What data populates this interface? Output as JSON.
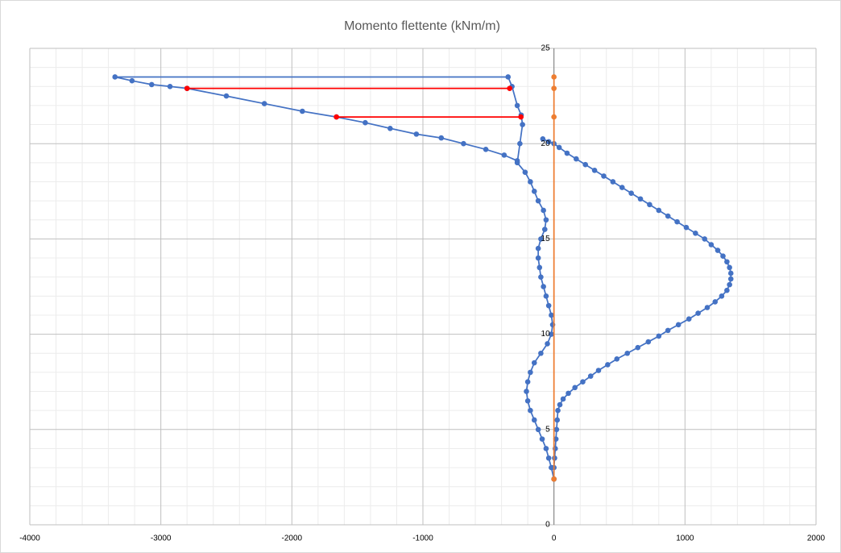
{
  "chart_data": {
    "type": "scatter",
    "title": "Momento flettente (kNm/m)",
    "xlim": [
      -4000,
      2000
    ],
    "xticks": [
      -4000,
      -3000,
      -2000,
      -1000,
      0,
      1000,
      2000
    ],
    "ylim": [
      0,
      25
    ],
    "yticks": [
      0,
      5,
      10,
      15,
      20,
      25
    ],
    "grid": true,
    "minor_divisions": 5,
    "series": [
      {
        "color": "#4472c4",
        "x": [
          0,
          -20,
          -40,
          -60,
          -90,
          -120,
          -150,
          -180,
          -200,
          -210,
          -200,
          -180,
          -150,
          -100,
          -50,
          -20,
          -10,
          -20,
          -40,
          -60,
          -80,
          -100,
          -110,
          -120,
          -120,
          -100,
          -70,
          -60,
          -80,
          -120,
          -150,
          -180,
          -220,
          -280,
          -260,
          -240,
          -250,
          -280,
          -320,
          -350,
          -3350,
          -3220,
          -3070,
          -2930,
          -2800,
          -2500,
          -2210,
          -1920,
          -1660,
          -1440,
          -1250,
          -1050,
          -860,
          -690,
          -520,
          -380,
          -280
        ],
        "values": [
          2.4,
          3,
          3.5,
          4,
          4.5,
          5,
          5.5,
          6,
          6.5,
          7,
          7.5,
          8,
          8.5,
          9,
          9.5,
          10,
          10.5,
          11,
          11.5,
          12,
          12.5,
          13,
          13.5,
          14,
          14.5,
          15,
          15.5,
          16,
          16.5,
          17,
          17.5,
          18,
          18.5,
          19,
          20,
          21,
          21.5,
          22,
          23,
          23.5,
          23.5,
          23.3,
          23.1,
          23,
          22.9,
          22.5,
          22.1,
          21.7,
          21.4,
          21.1,
          20.8,
          20.5,
          20.3,
          20,
          19.7,
          19.4,
          19.1
        ]
      },
      {
        "color": "#4472c4",
        "x": [
          -85,
          -40,
          0,
          40,
          100,
          170,
          240,
          310,
          380,
          450,
          520,
          590,
          660,
          730,
          800,
          870,
          940,
          1010,
          1080,
          1150,
          1200,
          1250,
          1290,
          1320,
          1340,
          1350,
          1350,
          1340,
          1320,
          1280,
          1230,
          1170,
          1100,
          1030,
          950,
          870,
          800,
          720,
          640,
          560,
          480,
          410,
          340,
          280,
          220,
          160,
          110,
          70,
          45,
          30,
          25,
          20,
          15,
          10,
          5,
          0,
          0
        ],
        "values": [
          20.25,
          20.1,
          20,
          19.8,
          19.5,
          19.2,
          18.9,
          18.6,
          18.3,
          18,
          17.7,
          17.4,
          17.1,
          16.8,
          16.5,
          16.2,
          15.9,
          15.6,
          15.3,
          15,
          14.7,
          14.4,
          14.1,
          13.8,
          13.5,
          13.2,
          12.9,
          12.6,
          12.3,
          12,
          11.7,
          11.4,
          11.1,
          10.8,
          10.5,
          10.2,
          9.9,
          9.6,
          9.3,
          9,
          8.7,
          8.4,
          8.1,
          7.8,
          7.5,
          7.2,
          6.9,
          6.6,
          6.3,
          6,
          5.5,
          5,
          4.5,
          4,
          3.5,
          3,
          2.4
        ]
      },
      {
        "color": "#ff0000",
        "x": [
          -2800,
          -338,
          null,
          -1660,
          -252
        ],
        "values": [
          22.9,
          22.9,
          null,
          21.4,
          21.4
        ]
      },
      {
        "color": "#ed7d31",
        "x": [
          0,
          0,
          0,
          0
        ],
        "values": [
          23.5,
          22.9,
          21.4,
          2.4
        ]
      }
    ]
  }
}
